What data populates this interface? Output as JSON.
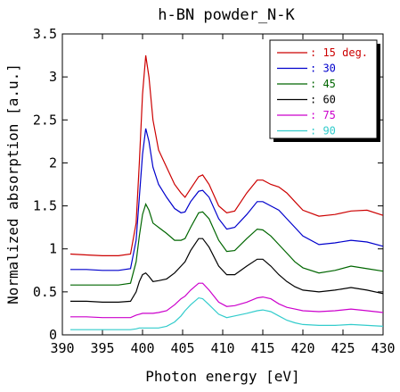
{
  "chart_data": {
    "type": "line",
    "title": "h-BN powder_N-K",
    "xlabel": "Photon energy [eV]",
    "ylabel": "Normalized absorption [a.u.]",
    "xlim": [
      390,
      430
    ],
    "ylim": [
      0,
      3.5
    ],
    "x_ticks": [
      "390",
      "395",
      "400",
      "405",
      "410",
      "415",
      "420",
      "425",
      "430"
    ],
    "y_ticks": [
      "0",
      "0.5",
      "1",
      "1.5",
      "2",
      "2.5",
      "3",
      "3.5"
    ],
    "grid": false,
    "legend_placement": "top-right",
    "series": [
      {
        "name": ": 15 deg.",
        "color": "#cc0000",
        "points": [
          [
            391,
            0.94
          ],
          [
            393,
            0.93
          ],
          [
            395,
            0.92
          ],
          [
            397,
            0.92
          ],
          [
            398.5,
            0.94
          ],
          [
            399.2,
            1.3
          ],
          [
            399.6,
            2.0
          ],
          [
            400.0,
            2.8
          ],
          [
            400.4,
            3.25
          ],
          [
            400.8,
            3.0
          ],
          [
            401.3,
            2.5
          ],
          [
            402,
            2.15
          ],
          [
            403,
            1.95
          ],
          [
            404,
            1.75
          ],
          [
            404.8,
            1.65
          ],
          [
            405.3,
            1.6
          ],
          [
            406,
            1.7
          ],
          [
            407,
            1.84
          ],
          [
            407.5,
            1.86
          ],
          [
            408.3,
            1.75
          ],
          [
            409.5,
            1.5
          ],
          [
            410.5,
            1.42
          ],
          [
            411.5,
            1.44
          ],
          [
            413,
            1.65
          ],
          [
            414.3,
            1.8
          ],
          [
            415,
            1.8
          ],
          [
            416,
            1.75
          ],
          [
            417,
            1.72
          ],
          [
            418,
            1.65
          ],
          [
            419,
            1.55
          ],
          [
            420,
            1.45
          ],
          [
            422,
            1.38
          ],
          [
            424,
            1.4
          ],
          [
            426,
            1.44
          ],
          [
            428,
            1.45
          ],
          [
            430,
            1.39
          ]
        ]
      },
      {
        "name": ": 30",
        "color": "#0000cc",
        "points": [
          [
            391,
            0.76
          ],
          [
            393,
            0.76
          ],
          [
            395,
            0.75
          ],
          [
            397,
            0.75
          ],
          [
            398.5,
            0.77
          ],
          [
            399.2,
            1.1
          ],
          [
            399.6,
            1.6
          ],
          [
            400.0,
            2.1
          ],
          [
            400.4,
            2.4
          ],
          [
            400.8,
            2.25
          ],
          [
            401.3,
            1.95
          ],
          [
            402,
            1.75
          ],
          [
            403,
            1.6
          ],
          [
            404,
            1.47
          ],
          [
            404.8,
            1.42
          ],
          [
            405.3,
            1.43
          ],
          [
            406,
            1.55
          ],
          [
            407,
            1.67
          ],
          [
            407.5,
            1.68
          ],
          [
            408.3,
            1.6
          ],
          [
            409.5,
            1.35
          ],
          [
            410.5,
            1.23
          ],
          [
            411.5,
            1.25
          ],
          [
            413,
            1.4
          ],
          [
            414.3,
            1.55
          ],
          [
            415,
            1.55
          ],
          [
            416,
            1.5
          ],
          [
            417,
            1.45
          ],
          [
            418,
            1.35
          ],
          [
            419,
            1.25
          ],
          [
            420,
            1.15
          ],
          [
            422,
            1.05
          ],
          [
            424,
            1.07
          ],
          [
            426,
            1.1
          ],
          [
            428,
            1.08
          ],
          [
            430,
            1.03
          ]
        ]
      },
      {
        "name": ": 45",
        "color": "#006600",
        "points": [
          [
            391,
            0.58
          ],
          [
            393,
            0.58
          ],
          [
            395,
            0.58
          ],
          [
            397,
            0.58
          ],
          [
            398.5,
            0.6
          ],
          [
            399.2,
            0.85
          ],
          [
            399.6,
            1.15
          ],
          [
            400.0,
            1.4
          ],
          [
            400.4,
            1.52
          ],
          [
            400.8,
            1.45
          ],
          [
            401.3,
            1.3
          ],
          [
            402,
            1.25
          ],
          [
            403,
            1.18
          ],
          [
            404,
            1.1
          ],
          [
            404.8,
            1.1
          ],
          [
            405.3,
            1.12
          ],
          [
            406,
            1.25
          ],
          [
            407,
            1.42
          ],
          [
            407.5,
            1.43
          ],
          [
            408.3,
            1.35
          ],
          [
            409.5,
            1.1
          ],
          [
            410.5,
            0.97
          ],
          [
            411.5,
            0.98
          ],
          [
            413,
            1.12
          ],
          [
            414.3,
            1.23
          ],
          [
            415,
            1.22
          ],
          [
            416,
            1.15
          ],
          [
            417,
            1.05
          ],
          [
            418,
            0.95
          ],
          [
            419,
            0.85
          ],
          [
            420,
            0.78
          ],
          [
            422,
            0.72
          ],
          [
            424,
            0.75
          ],
          [
            426,
            0.8
          ],
          [
            428,
            0.77
          ],
          [
            430,
            0.74
          ]
        ]
      },
      {
        "name": ": 60",
        "color": "#000000",
        "points": [
          [
            391,
            0.39
          ],
          [
            393,
            0.39
          ],
          [
            395,
            0.38
          ],
          [
            397,
            0.38
          ],
          [
            398.5,
            0.39
          ],
          [
            399.2,
            0.5
          ],
          [
            399.6,
            0.62
          ],
          [
            400.0,
            0.7
          ],
          [
            400.4,
            0.72
          ],
          [
            400.8,
            0.68
          ],
          [
            401.3,
            0.62
          ],
          [
            402,
            0.63
          ],
          [
            403,
            0.65
          ],
          [
            404,
            0.72
          ],
          [
            404.8,
            0.8
          ],
          [
            405.3,
            0.85
          ],
          [
            406,
            0.98
          ],
          [
            407,
            1.12
          ],
          [
            407.5,
            1.12
          ],
          [
            408.3,
            1.02
          ],
          [
            409.5,
            0.8
          ],
          [
            410.5,
            0.7
          ],
          [
            411.5,
            0.7
          ],
          [
            413,
            0.8
          ],
          [
            414.3,
            0.88
          ],
          [
            415,
            0.88
          ],
          [
            416,
            0.8
          ],
          [
            417,
            0.7
          ],
          [
            418,
            0.62
          ],
          [
            419,
            0.56
          ],
          [
            420,
            0.52
          ],
          [
            422,
            0.5
          ],
          [
            424,
            0.52
          ],
          [
            426,
            0.55
          ],
          [
            428,
            0.52
          ],
          [
            430,
            0.48
          ]
        ]
      },
      {
        "name": ": 75",
        "color": "#cc00cc",
        "points": [
          [
            391,
            0.21
          ],
          [
            393,
            0.21
          ],
          [
            395,
            0.2
          ],
          [
            397,
            0.2
          ],
          [
            398.5,
            0.2
          ],
          [
            399.2,
            0.23
          ],
          [
            399.6,
            0.24
          ],
          [
            400.0,
            0.25
          ],
          [
            400.4,
            0.25
          ],
          [
            400.8,
            0.25
          ],
          [
            401.3,
            0.25
          ],
          [
            402,
            0.26
          ],
          [
            403,
            0.28
          ],
          [
            404,
            0.35
          ],
          [
            404.8,
            0.42
          ],
          [
            405.3,
            0.45
          ],
          [
            406,
            0.52
          ],
          [
            407,
            0.6
          ],
          [
            407.5,
            0.6
          ],
          [
            408.3,
            0.52
          ],
          [
            409.5,
            0.38
          ],
          [
            410.5,
            0.33
          ],
          [
            411.5,
            0.34
          ],
          [
            413,
            0.38
          ],
          [
            414.3,
            0.43
          ],
          [
            415,
            0.44
          ],
          [
            416,
            0.42
          ],
          [
            417,
            0.36
          ],
          [
            418,
            0.32
          ],
          [
            419,
            0.3
          ],
          [
            420,
            0.28
          ],
          [
            422,
            0.27
          ],
          [
            424,
            0.28
          ],
          [
            426,
            0.3
          ],
          [
            428,
            0.28
          ],
          [
            430,
            0.26
          ]
        ]
      },
      {
        "name": ": 90",
        "color": "#33cccc",
        "points": [
          [
            391,
            0.06
          ],
          [
            393,
            0.06
          ],
          [
            395,
            0.06
          ],
          [
            397,
            0.06
          ],
          [
            398.5,
            0.06
          ],
          [
            399.2,
            0.07
          ],
          [
            399.6,
            0.08
          ],
          [
            400.0,
            0.08
          ],
          [
            400.4,
            0.08
          ],
          [
            400.8,
            0.08
          ],
          [
            401.3,
            0.08
          ],
          [
            402,
            0.08
          ],
          [
            403,
            0.1
          ],
          [
            404,
            0.15
          ],
          [
            404.8,
            0.22
          ],
          [
            405.3,
            0.28
          ],
          [
            406,
            0.35
          ],
          [
            407,
            0.43
          ],
          [
            407.5,
            0.42
          ],
          [
            408.3,
            0.35
          ],
          [
            409.5,
            0.24
          ],
          [
            410.5,
            0.2
          ],
          [
            411.5,
            0.22
          ],
          [
            413,
            0.25
          ],
          [
            414.3,
            0.28
          ],
          [
            415,
            0.29
          ],
          [
            416,
            0.27
          ],
          [
            417,
            0.22
          ],
          [
            418,
            0.17
          ],
          [
            419,
            0.14
          ],
          [
            420,
            0.12
          ],
          [
            422,
            0.11
          ],
          [
            424,
            0.11
          ],
          [
            426,
            0.12
          ],
          [
            428,
            0.11
          ],
          [
            430,
            0.1
          ]
        ]
      }
    ]
  }
}
